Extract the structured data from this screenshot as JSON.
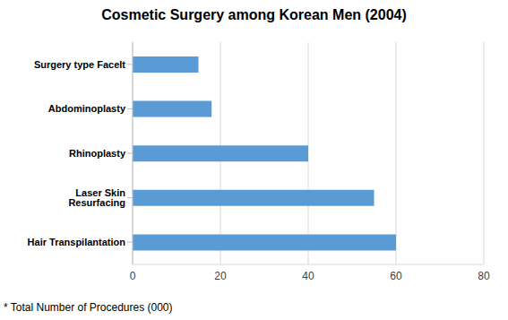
{
  "chart_data": {
    "type": "bar",
    "title": "Cosmetic Surgery among Korean Men (2004)",
    "annotation": "* Total Number of Procedures (000)",
    "orientation": "horizontal",
    "categories": [
      "Surgery type Facelt",
      "Abdominoplasty",
      "Rhinoplasty",
      "Laser Skin Resurfacing",
      "Hair Transpilantation"
    ],
    "values": [
      15,
      18,
      40,
      55,
      60
    ],
    "color": "#5b9bd5",
    "xlim": [
      0,
      80
    ],
    "xticks": [
      0,
      20,
      40,
      60,
      80
    ],
    "grid": true
  }
}
